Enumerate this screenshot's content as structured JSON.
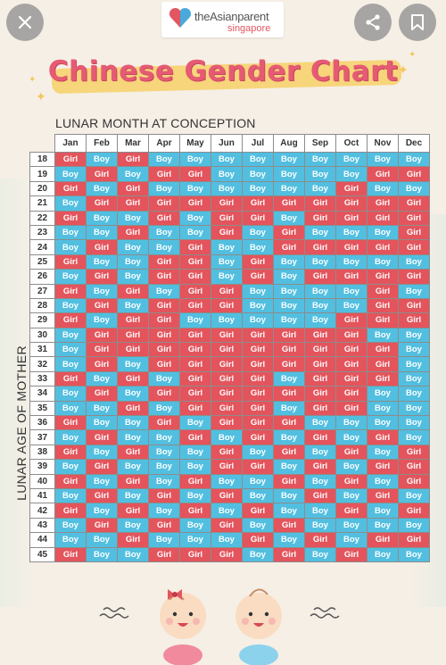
{
  "header": {
    "brand_name": "theAsianparent",
    "brand_sub": "singapore"
  },
  "title": "Chinese Gender Chart",
  "axis": {
    "x_label": "LUNAR MONTH AT CONCEPTION",
    "y_label": "LUNAR AGE OF MOTHER"
  },
  "months": [
    "Jan",
    "Feb",
    "Mar",
    "Apr",
    "May",
    "Jun",
    "Jul",
    "Aug",
    "Sep",
    "Oct",
    "Nov",
    "Dec"
  ],
  "rows": [
    {
      "age": "18",
      "cells": [
        "Girl",
        "Boy",
        "Girl",
        "Boy",
        "Boy",
        "Boy",
        "Boy",
        "Boy",
        "Boy",
        "Boy",
        "Boy",
        "Boy"
      ]
    },
    {
      "age": "19",
      "cells": [
        "Boy",
        "Girl",
        "Boy",
        "Girl",
        "Girl",
        "Boy",
        "Boy",
        "Boy",
        "Boy",
        "Boy",
        "Girl",
        "Girl"
      ]
    },
    {
      "age": "20",
      "cells": [
        "Girl",
        "Boy",
        "Girl",
        "Boy",
        "Boy",
        "Boy",
        "Boy",
        "Boy",
        "Boy",
        "Girl",
        "Boy",
        "Boy"
      ]
    },
    {
      "age": "21",
      "cells": [
        "Boy",
        "Girl",
        "Girl",
        "Girl",
        "Girl",
        "Girl",
        "Girl",
        "Girl",
        "Girl",
        "Girl",
        "Girl",
        "Girl"
      ]
    },
    {
      "age": "22",
      "cells": [
        "Girl",
        "Boy",
        "Boy",
        "Girl",
        "Boy",
        "Girl",
        "Girl",
        "Boy",
        "Girl",
        "Girl",
        "Girl",
        "Girl"
      ]
    },
    {
      "age": "23",
      "cells": [
        "Boy",
        "Boy",
        "Girl",
        "Boy",
        "Boy",
        "Girl",
        "Boy",
        "Girl",
        "Boy",
        "Boy",
        "Boy",
        "Girl"
      ]
    },
    {
      "age": "24",
      "cells": [
        "Boy",
        "Girl",
        "Boy",
        "Boy",
        "Girl",
        "Boy",
        "Boy",
        "Girl",
        "Girl",
        "Girl",
        "Girl",
        "Girl"
      ]
    },
    {
      "age": "25",
      "cells": [
        "Girl",
        "Boy",
        "Boy",
        "Girl",
        "Girl",
        "Boy",
        "Girl",
        "Boy",
        "Boy",
        "Boy",
        "Boy",
        "Boy"
      ]
    },
    {
      "age": "26",
      "cells": [
        "Boy",
        "Girl",
        "Boy",
        "Girl",
        "Girl",
        "Boy",
        "Girl",
        "Boy",
        "Girl",
        "Girl",
        "Girl",
        "Girl"
      ]
    },
    {
      "age": "27",
      "cells": [
        "Girl",
        "Boy",
        "Girl",
        "Boy",
        "Girl",
        "Girl",
        "Boy",
        "Boy",
        "Boy",
        "Boy",
        "Girl",
        "Boy"
      ]
    },
    {
      "age": "28",
      "cells": [
        "Boy",
        "Girl",
        "Boy",
        "Girl",
        "Girl",
        "Girl",
        "Boy",
        "Boy",
        "Boy",
        "Boy",
        "Girl",
        "Girl"
      ]
    },
    {
      "age": "29",
      "cells": [
        "Girl",
        "Boy",
        "Girl",
        "Girl",
        "Boy",
        "Boy",
        "Boy",
        "Boy",
        "Boy",
        "Girl",
        "Girl",
        "Girl"
      ]
    },
    {
      "age": "30",
      "cells": [
        "Boy",
        "Girl",
        "Girl",
        "Girl",
        "Girl",
        "Girl",
        "Girl",
        "Girl",
        "Girl",
        "Girl",
        "Boy",
        "Boy"
      ]
    },
    {
      "age": "31",
      "cells": [
        "Boy",
        "Girl",
        "Girl",
        "Girl",
        "Girl",
        "Girl",
        "Girl",
        "Girl",
        "Girl",
        "Girl",
        "Girl",
        "Boy"
      ]
    },
    {
      "age": "32",
      "cells": [
        "Boy",
        "Girl",
        "Boy",
        "Girl",
        "Girl",
        "Girl",
        "Girl",
        "Girl",
        "Girl",
        "Girl",
        "Girl",
        "Boy"
      ]
    },
    {
      "age": "33",
      "cells": [
        "Girl",
        "Boy",
        "Girl",
        "Boy",
        "Girl",
        "Girl",
        "Girl",
        "Boy",
        "Girl",
        "Girl",
        "Girl",
        "Boy"
      ]
    },
    {
      "age": "34",
      "cells": [
        "Boy",
        "Girl",
        "Boy",
        "Girl",
        "Girl",
        "Girl",
        "Girl",
        "Girl",
        "Girl",
        "Girl",
        "Boy",
        "Boy"
      ]
    },
    {
      "age": "35",
      "cells": [
        "Boy",
        "Boy",
        "Girl",
        "Boy",
        "Girl",
        "Girl",
        "Girl",
        "Boy",
        "Girl",
        "Girl",
        "Boy",
        "Boy"
      ]
    },
    {
      "age": "36",
      "cells": [
        "Girl",
        "Boy",
        "Boy",
        "Girl",
        "Boy",
        "Girl",
        "Girl",
        "Girl",
        "Boy",
        "Boy",
        "Boy",
        "Boy"
      ]
    },
    {
      "age": "37",
      "cells": [
        "Boy",
        "Girl",
        "Boy",
        "Boy",
        "Girl",
        "Boy",
        "Girl",
        "Boy",
        "Girl",
        "Boy",
        "Girl",
        "Boy"
      ]
    },
    {
      "age": "38",
      "cells": [
        "Girl",
        "Boy",
        "Girl",
        "Boy",
        "Boy",
        "Girl",
        "Boy",
        "Girl",
        "Boy",
        "Girl",
        "Boy",
        "Girl"
      ]
    },
    {
      "age": "39",
      "cells": [
        "Boy",
        "Girl",
        "Boy",
        "Boy",
        "Boy",
        "Girl",
        "Girl",
        "Boy",
        "Girl",
        "Boy",
        "Girl",
        "Girl"
      ]
    },
    {
      "age": "40",
      "cells": [
        "Girl",
        "Boy",
        "Girl",
        "Boy",
        "Girl",
        "Boy",
        "Boy",
        "Girl",
        "Boy",
        "Girl",
        "Boy",
        "Girl"
      ]
    },
    {
      "age": "41",
      "cells": [
        "Boy",
        "Girl",
        "Boy",
        "Girl",
        "Boy",
        "Girl",
        "Boy",
        "Boy",
        "Girl",
        "Boy",
        "Girl",
        "Boy"
      ]
    },
    {
      "age": "42",
      "cells": [
        "Girl",
        "Boy",
        "Girl",
        "Boy",
        "Girl",
        "Boy",
        "Girl",
        "Boy",
        "Boy",
        "Girl",
        "Boy",
        "Girl"
      ]
    },
    {
      "age": "43",
      "cells": [
        "Boy",
        "Girl",
        "Boy",
        "Girl",
        "Boy",
        "Girl",
        "Boy",
        "Girl",
        "Boy",
        "Boy",
        "Boy",
        "Boy"
      ]
    },
    {
      "age": "44",
      "cells": [
        "Boy",
        "Boy",
        "Girl",
        "Boy",
        "Boy",
        "Boy",
        "Girl",
        "Boy",
        "Girl",
        "Boy",
        "Girl",
        "Girl"
      ]
    },
    {
      "age": "45",
      "cells": [
        "Girl",
        "Boy",
        "Boy",
        "Girl",
        "Girl",
        "Girl",
        "Boy",
        "Girl",
        "Boy",
        "Girl",
        "Boy",
        "Boy"
      ]
    }
  ],
  "colors": {
    "boy": "#52bfe0",
    "girl": "#e4545c",
    "title": "#e55b73",
    "highlight": "#f7d57a",
    "background": "#f6efe6"
  },
  "icons": {
    "close": "close-icon",
    "share": "share-icon",
    "save": "bookmark-icon",
    "logo": "heart-logo-icon"
  }
}
